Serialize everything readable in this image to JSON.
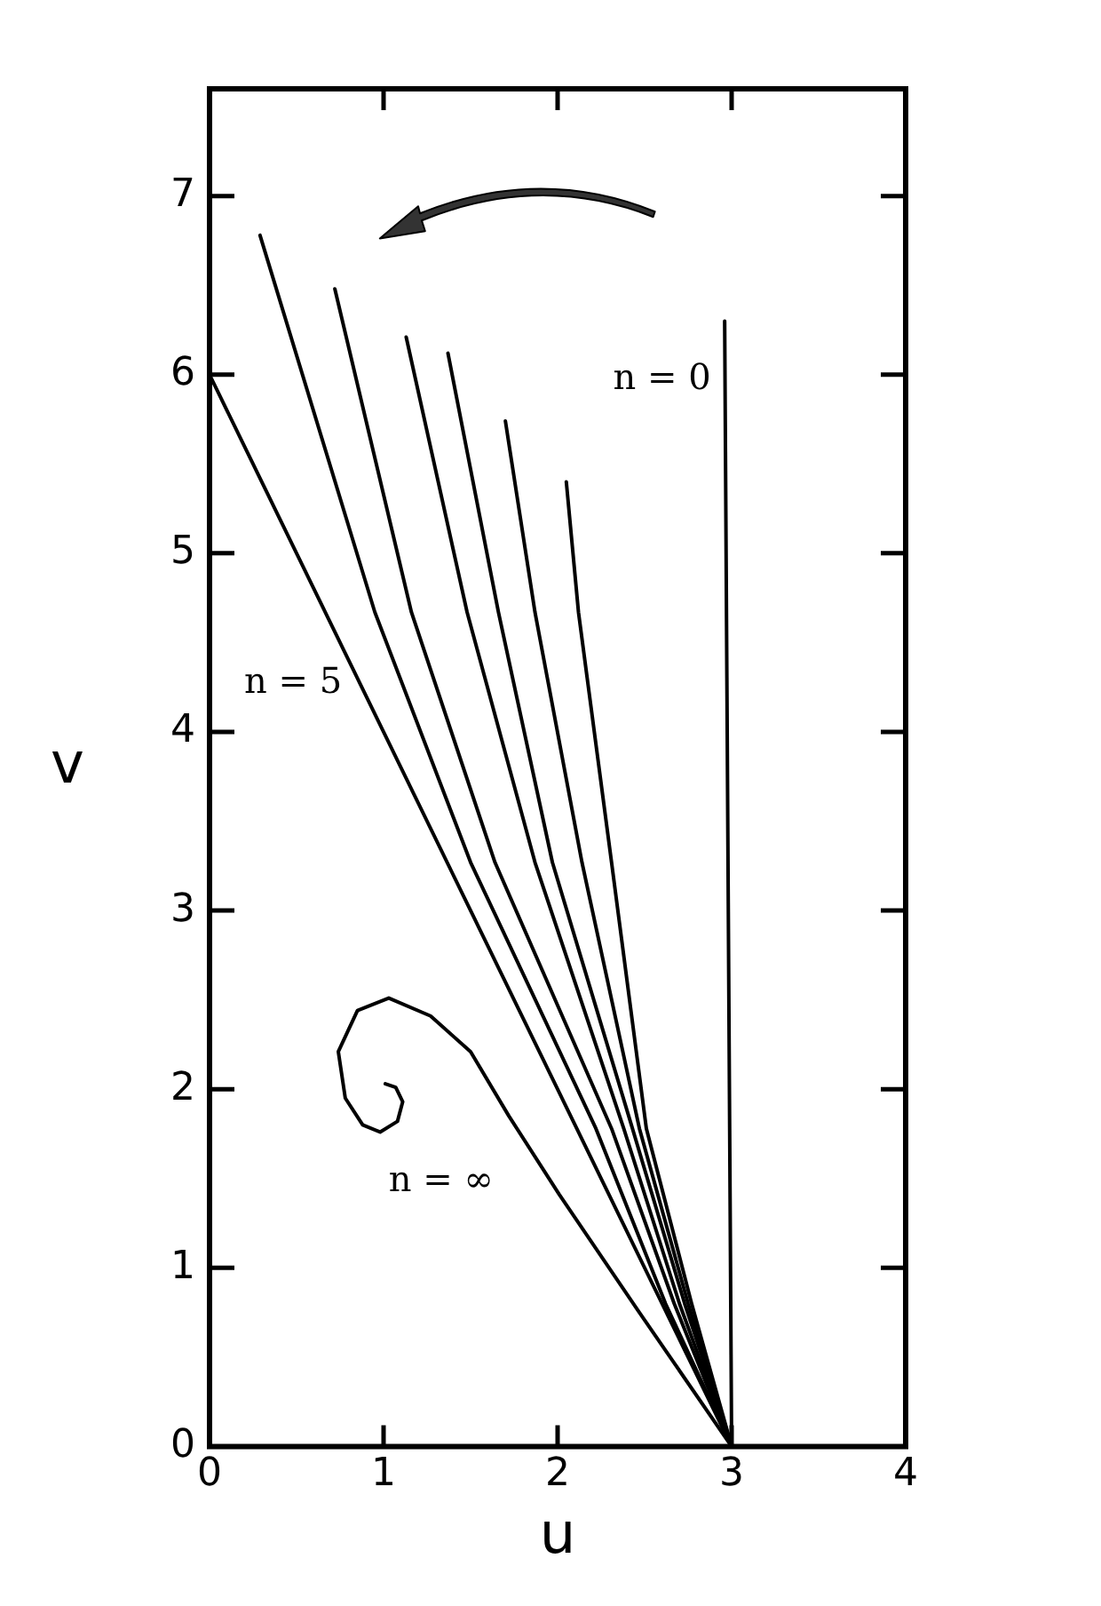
{
  "chart_data": {
    "type": "line",
    "xlabel": "u",
    "ylabel": "v",
    "xlim": [
      0,
      4
    ],
    "ylim": [
      0,
      7.6
    ],
    "xticks": [
      0,
      1,
      2,
      3,
      4
    ],
    "yticks": [
      0,
      1,
      2,
      3,
      4,
      5,
      6,
      7
    ],
    "grid": false,
    "legend": false,
    "marker": "none",
    "line_style": "solid",
    "series": [
      {
        "color": "#000000",
        "x": [
          3,
          2.96
        ],
        "values": [
          0,
          6.3
        ]
      },
      {
        "color": "#000000",
        "x": [
          0,
          3
        ],
        "values": [
          6,
          0
        ]
      },
      {
        "color": "#000000",
        "x": [
          0.29,
          0.95,
          1.5,
          2.22,
          2.62,
          3
        ],
        "values": [
          6.78,
          4.67,
          3.27,
          1.78,
          0.8,
          0
        ]
      },
      {
        "color": "#000000",
        "x": [
          0.72,
          1.16,
          1.64,
          2.31,
          2.67,
          3
        ],
        "values": [
          6.48,
          4.67,
          3.27,
          1.78,
          0.8,
          0
        ]
      },
      {
        "color": "#000000",
        "x": [
          1.13,
          1.48,
          1.87,
          2.38,
          2.7,
          3
        ],
        "values": [
          6.21,
          4.67,
          3.27,
          1.78,
          0.8,
          0
        ]
      },
      {
        "color": "#000000",
        "x": [
          1.37,
          1.66,
          1.97,
          2.43,
          2.73,
          3
        ],
        "values": [
          6.12,
          4.67,
          3.27,
          1.78,
          0.8,
          0
        ]
      },
      {
        "color": "#000000",
        "x": [
          1.7,
          1.87,
          2.14,
          2.47,
          2.75,
          3
        ],
        "values": [
          5.74,
          4.67,
          3.27,
          1.78,
          0.8,
          0
        ]
      },
      {
        "color": "#000000",
        "x": [
          2.05,
          2.12,
          2.31,
          2.51,
          2.77,
          3
        ],
        "values": [
          5.4,
          4.67,
          3.27,
          1.78,
          0.8,
          0
        ]
      },
      {
        "color": "#000000",
        "x": [
          3,
          2.47,
          2.01,
          1.72,
          1.5,
          1.27,
          1.03,
          0.85,
          0.74,
          0.78,
          0.88,
          0.98,
          1.08,
          1.11,
          1.07,
          1.01
        ],
        "values": [
          0,
          0.75,
          1.41,
          1.85,
          2.21,
          2.41,
          2.51,
          2.44,
          2.21,
          1.95,
          1.8,
          1.76,
          1.82,
          1.93,
          2.01,
          2.03
        ]
      }
    ],
    "annotations": [
      "n = 0",
      "n = 5",
      "n = ∞"
    ]
  }
}
